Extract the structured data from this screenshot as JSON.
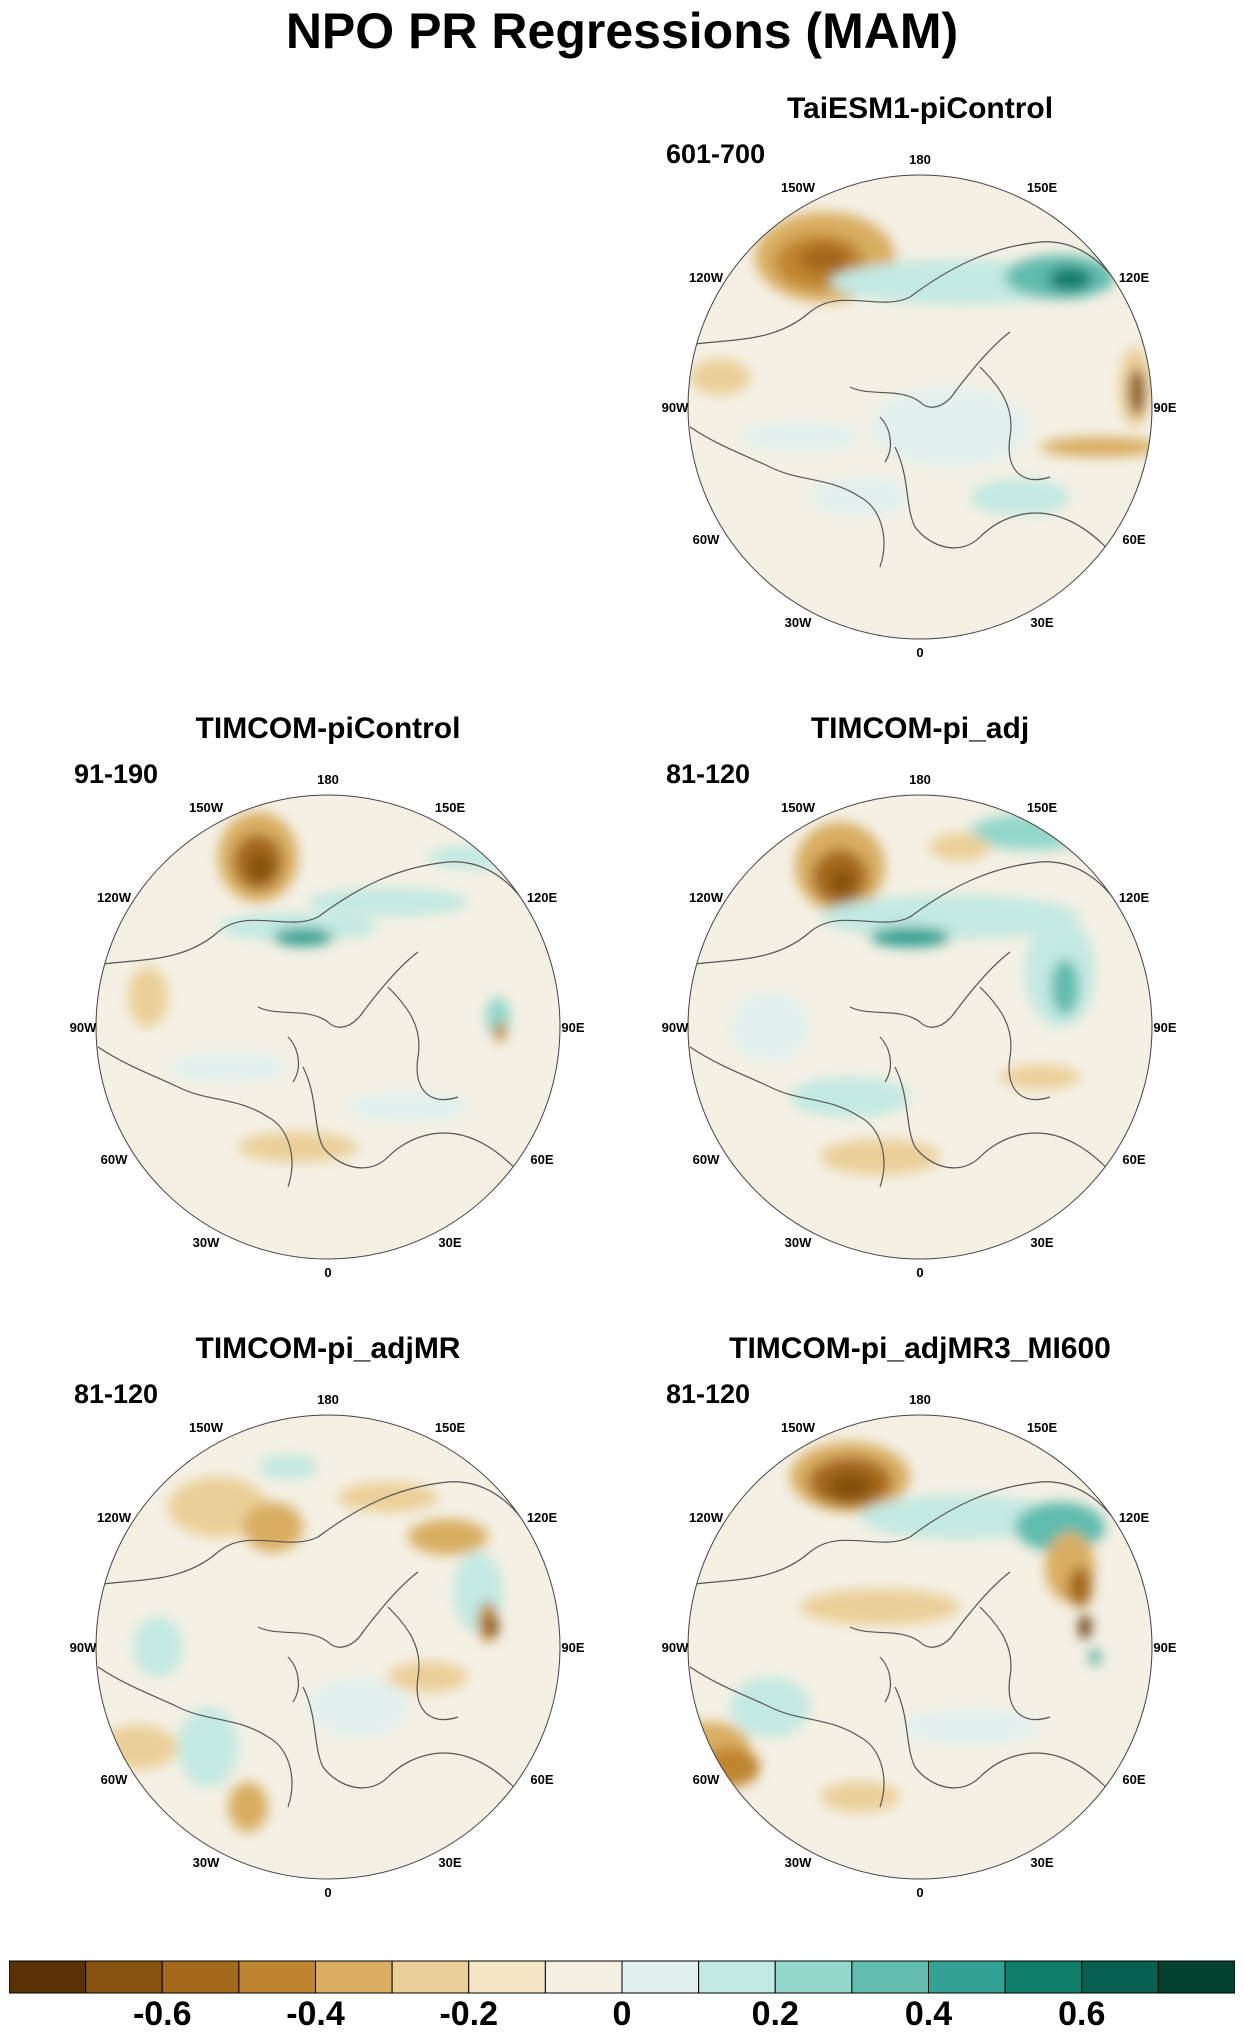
{
  "title": "NPO PR Regressions (MAM)",
  "longitude_labels": [
    "180",
    "150E",
    "120E",
    "90E",
    "60E",
    "30E",
    "0",
    "30W",
    "60W",
    "90W",
    "120W",
    "150W"
  ],
  "panels": [
    {
      "name": "TaiESM1-piControl",
      "years": "601-700"
    },
    {
      "name": "TIMCOM-piControl",
      "years": "91-190"
    },
    {
      "name": "TIMCOM-pi_adj",
      "years": "81-120"
    },
    {
      "name": "TIMCOM-pi_adjMR",
      "years": "81-120"
    },
    {
      "name": "TIMCOM-pi_adjMR3_MI600",
      "years": "81-120"
    }
  ],
  "colorbar": {
    "colors": [
      "#5a3005",
      "#84510f",
      "#a5691c",
      "#c0852f",
      "#d9ae62",
      "#ebcf98",
      "#f5e6c4",
      "#f4f0e4",
      "#e2f0ee",
      "#c2e9e2",
      "#93d7cb",
      "#61bcae",
      "#33a193",
      "#0f7e6b",
      "#075f4f",
      "#02402f"
    ],
    "tick_labels": [
      "-0.6",
      "-0.4",
      "-0.2",
      "0",
      "0.2",
      "0.4",
      "0.6"
    ]
  }
}
